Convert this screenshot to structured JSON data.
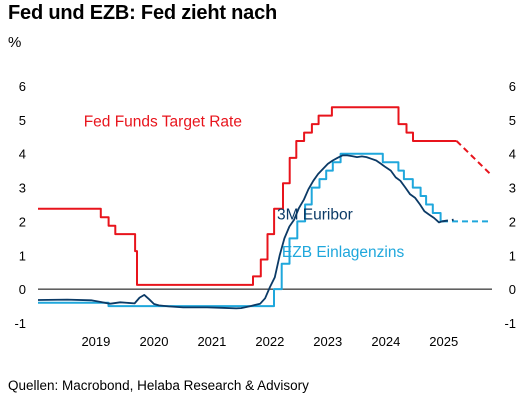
{
  "header": {
    "title": "Fed und EZB: Fed zieht nach",
    "unit": "%"
  },
  "footer": {
    "source": "Quellen: Macrobond, Helaba Research & Advisory"
  },
  "colors": {
    "fed": "#e8141c",
    "ezb": "#1fa7dc",
    "euribor": "#0b3a66",
    "zero": "#000000"
  },
  "chart_data": {
    "type": "line",
    "title": "Fed und EZB: Fed zieht nach",
    "ylabel": "%",
    "ylim": [
      -1,
      6
    ],
    "yticks": [
      -1,
      0,
      1,
      2,
      3,
      4,
      5,
      6
    ],
    "xlim": [
      "2018-07-01",
      "2026-05-01"
    ],
    "xticks": [
      "2019",
      "2020",
      "2021",
      "2022",
      "2023",
      "2024",
      "2025"
    ],
    "grid": false,
    "series": [
      {
        "name": "Fed Funds Target Rate",
        "color": "#e8141c",
        "step": true,
        "dates": [
          "2018-07-01",
          "2018-09-27",
          "2018-12-20",
          "2019-08-01",
          "2019-09-19",
          "2019-10-31",
          "2020-03-04",
          "2020-03-16",
          "2022-03-17",
          "2022-05-05",
          "2022-06-16",
          "2022-07-28",
          "2022-09-22",
          "2022-11-03",
          "2022-12-15",
          "2023-02-02",
          "2023-03-23",
          "2023-05-04",
          "2023-07-27",
          "2024-09-19",
          "2024-11-08",
          "2024-12-19",
          "2025-09-20"
        ],
        "values": [
          2.375,
          2.375,
          2.375,
          2.125,
          1.875,
          1.625,
          1.125,
          0.125,
          0.375,
          0.875,
          1.625,
          2.375,
          3.125,
          3.875,
          4.375,
          4.625,
          4.875,
          5.125,
          5.375,
          4.875,
          4.625,
          4.375,
          4.375
        ]
      },
      {
        "name": "Fed Funds Target Rate (Prognose)",
        "color": "#e8141c",
        "dashed": true,
        "dates": [
          "2025-09-20",
          "2026-05-01"
        ],
        "values": [
          4.375,
          3.35
        ]
      },
      {
        "name": "EZB Einlagenzins",
        "color": "#1fa7dc",
        "step": true,
        "dates": [
          "2018-07-01",
          "2019-09-18",
          "2022-07-27",
          "2022-09-14",
          "2022-11-02",
          "2022-12-21",
          "2023-02-08",
          "2023-03-22",
          "2023-05-10",
          "2023-06-21",
          "2023-08-02",
          "2023-09-20",
          "2024-06-12",
          "2024-09-18",
          "2024-10-23",
          "2024-12-18",
          "2025-02-05",
          "2025-03-12",
          "2025-04-23",
          "2025-06-11",
          "2025-06-20"
        ],
        "values": [
          -0.4,
          -0.5,
          0.0,
          0.75,
          1.5,
          2.0,
          2.5,
          3.0,
          3.25,
          3.5,
          3.75,
          4.0,
          3.75,
          3.5,
          3.25,
          3.0,
          2.75,
          2.5,
          2.25,
          2.0,
          2.0
        ]
      },
      {
        "name": "EZB Einlagenzins (Prognose)",
        "color": "#1fa7dc",
        "dashed": true,
        "dates": [
          "2025-06-20",
          "2026-05-01"
        ],
        "values": [
          2.0,
          2.0
        ]
      },
      {
        "name": "3M Euribor",
        "color": "#0b3a66",
        "dates": [
          "2018-07-01",
          "2019-01-01",
          "2019-06-01",
          "2019-08-01",
          "2019-09-15",
          "2019-10-01",
          "2019-12-01",
          "2020-03-01",
          "2020-04-01",
          "2020-05-01",
          "2020-06-01",
          "2020-07-01",
          "2020-08-01",
          "2020-10-01",
          "2021-01-01",
          "2021-06-01",
          "2021-09-01",
          "2021-12-01",
          "2022-01-01",
          "2022-03-01",
          "2022-05-01",
          "2022-06-01",
          "2022-07-01",
          "2022-08-01",
          "2022-09-01",
          "2022-10-01",
          "2022-11-01",
          "2022-12-01",
          "2023-01-01",
          "2023-02-01",
          "2023-03-01",
          "2023-04-01",
          "2023-05-01",
          "2023-06-01",
          "2023-07-01",
          "2023-08-01",
          "2023-09-01",
          "2023-10-01",
          "2023-11-01",
          "2023-12-01",
          "2024-01-01",
          "2024-02-01",
          "2024-03-01",
          "2024-04-01",
          "2024-05-01",
          "2024-06-01",
          "2024-07-01",
          "2024-08-01",
          "2024-09-01",
          "2024-10-01",
          "2024-11-01",
          "2024-12-01",
          "2025-01-01",
          "2025-02-01",
          "2025-03-01",
          "2025-04-01",
          "2025-05-01",
          "2025-06-01",
          "2025-06-20"
        ],
        "values": [
          -0.32,
          -0.31,
          -0.33,
          -0.38,
          -0.42,
          -0.43,
          -0.39,
          -0.42,
          -0.25,
          -0.17,
          -0.3,
          -0.44,
          -0.48,
          -0.51,
          -0.54,
          -0.54,
          -0.55,
          -0.57,
          -0.56,
          -0.5,
          -0.43,
          -0.27,
          0.05,
          0.35,
          1.0,
          1.5,
          1.85,
          2.05,
          2.4,
          2.65,
          2.95,
          3.2,
          3.4,
          3.55,
          3.7,
          3.8,
          3.88,
          3.95,
          3.95,
          3.93,
          3.9,
          3.92,
          3.9,
          3.85,
          3.8,
          3.7,
          3.6,
          3.5,
          3.3,
          3.2,
          3.0,
          2.8,
          2.7,
          2.5,
          2.3,
          2.2,
          2.1,
          1.97,
          2.0
        ]
      },
      {
        "name": "3M Euribor (Prognose)",
        "color": "#0b3a66",
        "dashed": true,
        "dates": [
          "2025-06-20",
          "2025-09-01"
        ],
        "values": [
          2.0,
          2.05
        ]
      }
    ],
    "annotations": [
      {
        "text": "Fed Funds Target Rate",
        "series": "Fed Funds Target Rate"
      },
      {
        "text": "3M Euribor",
        "series": "3M Euribor"
      },
      {
        "text": "EZB Einlagenzins",
        "series": "EZB Einlagenzins"
      }
    ]
  }
}
